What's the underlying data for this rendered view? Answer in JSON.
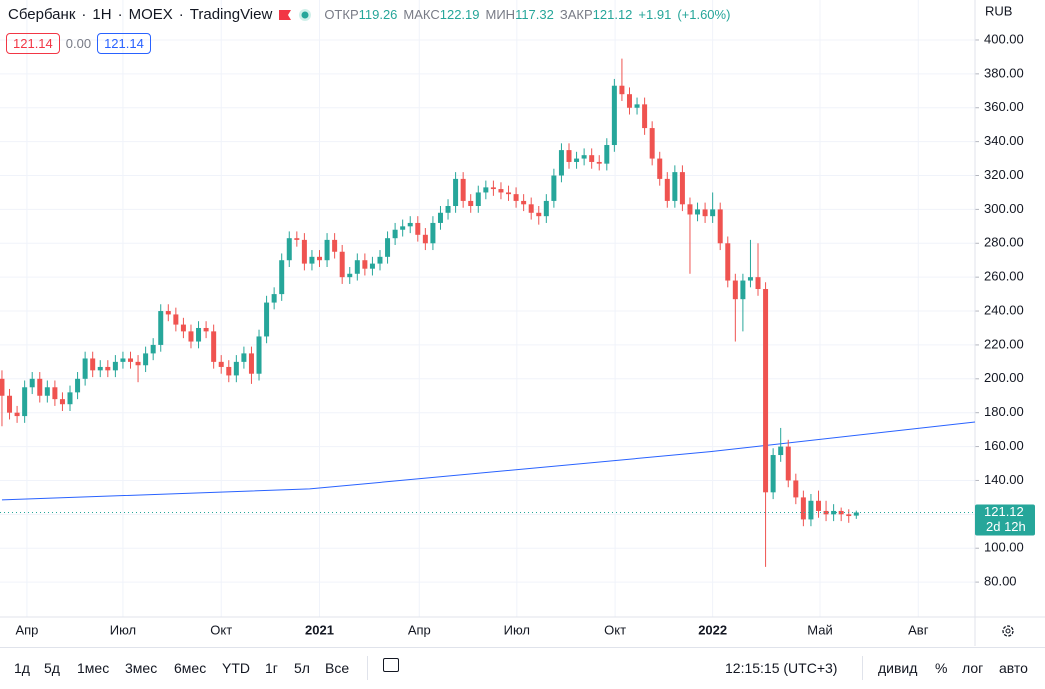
{
  "header": {
    "symbol": "Сбербанк",
    "interval": "1Н",
    "exchange": "MOEX",
    "source": "TradingView",
    "ohlc": [
      {
        "name": "ОТКР",
        "value": 119.26
      },
      {
        "name": "МАКС",
        "value": 122.19
      },
      {
        "name": "МИН",
        "value": 117.32
      },
      {
        "name": "ЗАКР",
        "value": 121.12
      }
    ],
    "change": "+1.91",
    "change_pct": "(+1.60%)",
    "bid": 121.14,
    "spread": "0.00",
    "ask": 121.14
  },
  "currency": "RUB",
  "chart_data": {
    "type": "candlestick",
    "up_color": "#26a69a",
    "down_color": "#ef5350",
    "grid": true,
    "candles": [
      [
        200,
        205,
        172,
        190
      ],
      [
        190,
        194,
        176,
        180
      ],
      [
        180,
        184,
        174,
        178
      ],
      [
        178,
        199,
        174,
        195
      ],
      [
        195,
        204,
        191,
        200
      ],
      [
        200,
        204,
        186,
        190
      ],
      [
        190,
        199,
        186,
        195
      ],
      [
        195,
        199,
        184,
        188
      ],
      [
        188,
        192,
        181,
        185
      ],
      [
        185,
        196,
        181,
        192
      ],
      [
        192,
        204,
        188,
        200
      ],
      [
        200,
        216,
        196,
        212
      ],
      [
        212,
        216,
        201,
        205
      ],
      [
        205,
        211,
        201,
        207
      ],
      [
        207,
        211,
        201,
        205
      ],
      [
        205,
        214,
        201,
        210
      ],
      [
        210,
        216,
        206,
        212
      ],
      [
        212,
        216,
        206,
        210
      ],
      [
        210,
        214,
        198,
        208
      ],
      [
        208,
        219,
        204,
        215
      ],
      [
        215,
        224,
        211,
        220
      ],
      [
        220,
        244,
        216,
        240
      ],
      [
        240,
        244,
        234,
        238
      ],
      [
        238,
        242,
        228,
        232
      ],
      [
        232,
        236,
        224,
        228
      ],
      [
        228,
        232,
        218,
        222
      ],
      [
        222,
        234,
        218,
        230
      ],
      [
        230,
        234,
        224,
        228
      ],
      [
        228,
        232,
        206,
        210
      ],
      [
        210,
        214,
        203,
        207
      ],
      [
        207,
        211,
        198,
        202
      ],
      [
        202,
        214,
        198,
        210
      ],
      [
        210,
        219,
        206,
        215
      ],
      [
        215,
        219,
        197,
        203
      ],
      [
        203,
        229,
        199,
        225
      ],
      [
        225,
        249,
        221,
        245
      ],
      [
        245,
        254,
        241,
        250
      ],
      [
        250,
        274,
        246,
        270
      ],
      [
        270,
        287,
        266,
        283
      ],
      [
        283,
        287,
        278,
        282
      ],
      [
        282,
        286,
        264,
        268
      ],
      [
        268,
        276,
        264,
        272
      ],
      [
        272,
        276,
        266,
        270
      ],
      [
        270,
        286,
        266,
        282
      ],
      [
        282,
        286,
        271,
        275
      ],
      [
        275,
        279,
        256,
        260
      ],
      [
        260,
        266,
        256,
        262
      ],
      [
        262,
        274,
        258,
        270
      ],
      [
        270,
        274,
        261,
        265
      ],
      [
        265,
        272,
        261,
        268
      ],
      [
        268,
        276,
        264,
        272
      ],
      [
        272,
        287,
        268,
        283
      ],
      [
        283,
        292,
        279,
        288
      ],
      [
        288,
        294,
        284,
        290
      ],
      [
        290,
        296,
        286,
        292
      ],
      [
        292,
        296,
        281,
        285
      ],
      [
        285,
        289,
        276,
        280
      ],
      [
        280,
        296,
        276,
        292
      ],
      [
        292,
        302,
        288,
        298
      ],
      [
        298,
        306,
        294,
        302
      ],
      [
        302,
        322,
        298,
        318
      ],
      [
        318,
        322,
        301,
        305
      ],
      [
        305,
        309,
        298,
        302
      ],
      [
        302,
        314,
        298,
        310
      ],
      [
        310,
        317,
        306,
        313
      ],
      [
        313,
        317,
        308,
        312
      ],
      [
        312,
        316,
        306,
        310
      ],
      [
        310,
        314,
        305,
        309
      ],
      [
        309,
        313,
        301,
        305
      ],
      [
        305,
        309,
        299,
        303
      ],
      [
        303,
        307,
        294,
        298
      ],
      [
        298,
        302,
        291,
        296
      ],
      [
        296,
        309,
        292,
        305
      ],
      [
        305,
        324,
        301,
        320
      ],
      [
        320,
        339,
        316,
        335
      ],
      [
        335,
        339,
        324,
        328
      ],
      [
        328,
        334,
        324,
        330
      ],
      [
        330,
        336,
        326,
        332
      ],
      [
        332,
        336,
        324,
        328
      ],
      [
        328,
        332,
        323,
        327
      ],
      [
        327,
        342,
        323,
        338
      ],
      [
        338,
        377,
        334,
        373
      ],
      [
        373,
        389,
        364,
        368
      ],
      [
        368,
        372,
        356,
        360
      ],
      [
        360,
        366,
        356,
        362
      ],
      [
        362,
        366,
        344,
        348
      ],
      [
        348,
        352,
        326,
        330
      ],
      [
        330,
        334,
        314,
        318
      ],
      [
        318,
        322,
        301,
        305
      ],
      [
        305,
        326,
        301,
        322
      ],
      [
        322,
        326,
        299,
        303
      ],
      [
        303,
        307,
        262,
        297
      ],
      [
        297,
        304,
        293,
        300
      ],
      [
        300,
        304,
        292,
        296
      ],
      [
        296,
        310,
        292,
        300
      ],
      [
        300,
        304,
        276,
        280
      ],
      [
        280,
        284,
        254,
        258
      ],
      [
        258,
        262,
        222,
        247
      ],
      [
        247,
        262,
        228,
        258
      ],
      [
        258,
        282,
        254,
        260
      ],
      [
        260,
        280,
        249,
        253
      ],
      [
        253,
        257,
        89,
        133
      ],
      [
        133,
        159,
        129,
        155
      ],
      [
        155,
        171,
        151,
        160
      ],
      [
        160,
        164,
        136,
        140
      ],
      [
        140,
        144,
        126,
        130
      ],
      [
        130,
        134,
        113,
        117
      ],
      [
        117,
        132,
        113,
        128
      ],
      [
        128,
        134,
        118,
        122
      ],
      [
        122,
        128,
        116,
        120
      ],
      [
        120,
        126,
        116,
        122
      ],
      [
        122,
        124,
        116,
        120
      ],
      [
        120,
        123,
        115,
        119
      ],
      [
        119.26,
        122.19,
        117.32,
        121.12
      ]
    ],
    "line": {
      "color": "#2962ff",
      "x": [
        0,
        40.7,
        93.7,
        128.7
      ],
      "values": [
        128.5,
        135,
        157,
        174.5
      ]
    },
    "last_price": 121.12,
    "countdown": "2d 12h",
    "xlim": [
      -0.26,
      128.7
    ],
    "xticks": [
      {
        "value": 3.3,
        "label": "Апр"
      },
      {
        "value": 16,
        "label": "Июл"
      },
      {
        "value": 29,
        "label": "Окт"
      },
      {
        "value": 42,
        "label": "2021"
      },
      {
        "value": 55.2,
        "label": "Апр"
      },
      {
        "value": 68.1,
        "label": "Июл"
      },
      {
        "value": 81.1,
        "label": "Окт"
      },
      {
        "value": 94,
        "label": "2022"
      },
      {
        "value": 108.2,
        "label": "Май"
      },
      {
        "value": 121.2,
        "label": "Авг"
      }
    ],
    "ylim": [
      59.4,
      423.6
    ],
    "yticks": [
      {
        "value": 80,
        "label": "80.00"
      },
      {
        "value": 100,
        "label": "100.00"
      },
      {
        "value": 120,
        "label": "120.00"
      },
      {
        "value": 140,
        "label": "140.00"
      },
      {
        "value": 160,
        "label": "160.00"
      },
      {
        "value": 180,
        "label": "180.00"
      },
      {
        "value": 200,
        "label": "200.00"
      },
      {
        "value": 220,
        "label": "220.00"
      },
      {
        "value": 240,
        "label": "240.00"
      },
      {
        "value": 260,
        "label": "260.00"
      },
      {
        "value": 280,
        "label": "280.00"
      },
      {
        "value": 300,
        "label": "300.00"
      },
      {
        "value": 320,
        "label": "320.00"
      },
      {
        "value": 340,
        "label": "340.00"
      },
      {
        "value": 360,
        "label": "360.00"
      },
      {
        "value": 380,
        "label": "380.00"
      },
      {
        "value": 400,
        "label": "400.00"
      }
    ]
  },
  "toolbar": {
    "ranges": [
      "1д",
      "5д",
      "1мес",
      "3мес",
      "6мес",
      "YTD",
      "1г",
      "5л",
      "Все"
    ],
    "clock": "12:15:15 (UTC+3)",
    "options": [
      "дивид",
      "%",
      "лог",
      "авто"
    ]
  }
}
